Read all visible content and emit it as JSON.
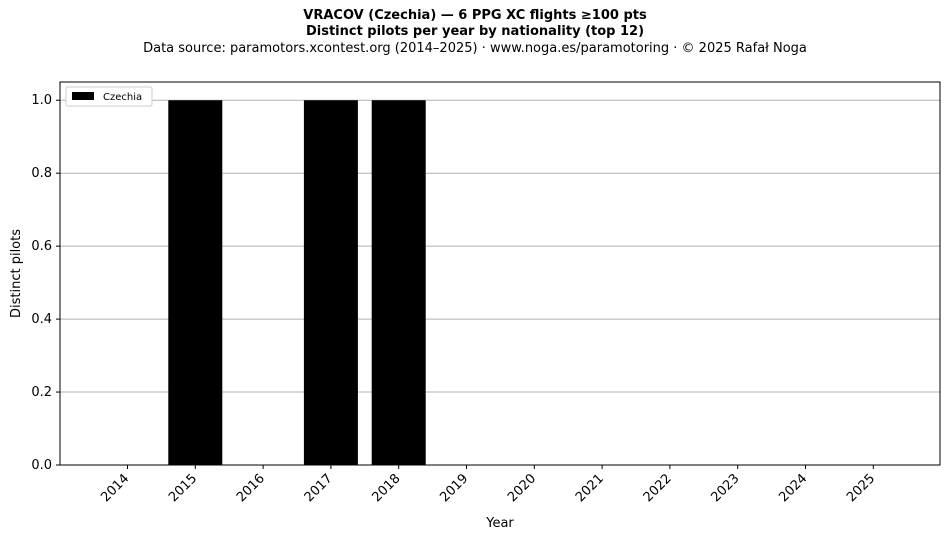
{
  "chart_data": {
    "type": "bar",
    "title": "VRACOV (Czechia)  —  6 PPG XC flights ≥100 pts",
    "subtitle": "Distinct pilots per year by nationality (top 12)",
    "source_line": "Data source: paramotors.xcontest.org (2014–2025)  ·  www.noga.es/paramotoring  ·  © 2025 Rafał Noga",
    "xlabel": "Year",
    "ylabel": "Distinct pilots",
    "categories": [
      "2014",
      "2015",
      "2016",
      "2017",
      "2018",
      "2019",
      "2020",
      "2021",
      "2022",
      "2023",
      "2024",
      "2025"
    ],
    "series": [
      {
        "name": "Czechia",
        "color": "#000000",
        "values": [
          0,
          1,
          0,
          1,
          1,
          0,
          0,
          0,
          0,
          0,
          0,
          0
        ]
      }
    ],
    "ylim": [
      0,
      1.05
    ],
    "yticks": [
      "0.0",
      "0.2",
      "0.4",
      "0.6",
      "0.8",
      "1.0"
    ],
    "grid": "horizontal",
    "legend_position": "top-left"
  }
}
